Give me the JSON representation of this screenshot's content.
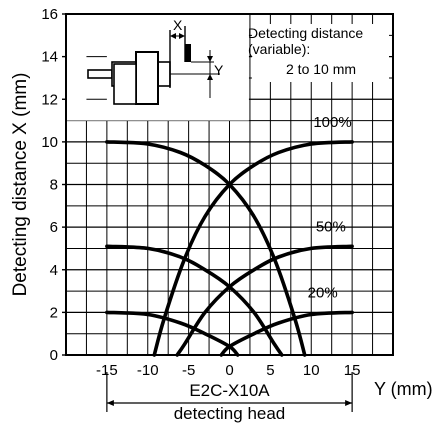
{
  "chart_data": {
    "type": "line",
    "title": "",
    "xlabel": "Y (mm)",
    "ylabel": "Detecting distance X (mm)",
    "xlim": [
      -20,
      20
    ],
    "ylim": [
      0,
      16
    ],
    "x_ticks": [
      -15,
      -10,
      -5,
      0,
      5,
      10,
      15
    ],
    "y_ticks": [
      0,
      2,
      4,
      6,
      8,
      10,
      12,
      14,
      16
    ],
    "grid": true,
    "series": [
      {
        "name": "100%",
        "left": [
          [
            -15,
            10.0
          ],
          [
            -10,
            9.9
          ],
          [
            -6,
            9.5
          ],
          [
            -3,
            8.9
          ],
          [
            0,
            8.0
          ],
          [
            3,
            6.5
          ],
          [
            5.5,
            4.5
          ],
          [
            8,
            1.7
          ],
          [
            9.2,
            0.0
          ]
        ],
        "right": [
          [
            -9.2,
            0.0
          ],
          [
            -8,
            1.7
          ],
          [
            -5.5,
            4.5
          ],
          [
            -3,
            6.5
          ],
          [
            0,
            8.0
          ],
          [
            3,
            8.9
          ],
          [
            6,
            9.5
          ],
          [
            10,
            9.9
          ],
          [
            15,
            10.0
          ]
        ]
      },
      {
        "name": "50%",
        "left": [
          [
            -15,
            5.1
          ],
          [
            -10,
            5.0
          ],
          [
            -6,
            4.6
          ],
          [
            -3,
            4.0
          ],
          [
            0,
            3.2
          ],
          [
            3,
            2.0
          ],
          [
            5.5,
            0.5
          ],
          [
            6.4,
            0.0
          ]
        ],
        "right": [
          [
            -6.4,
            0.0
          ],
          [
            -5.5,
            0.5
          ],
          [
            -3,
            2.0
          ],
          [
            0,
            3.2
          ],
          [
            3,
            4.0
          ],
          [
            6,
            4.6
          ],
          [
            10,
            5.0
          ],
          [
            15,
            5.1
          ]
        ]
      },
      {
        "name": "20%",
        "left": [
          [
            -15,
            2.0
          ],
          [
            -10,
            1.9
          ],
          [
            -6,
            1.5
          ],
          [
            -3,
            1.0
          ],
          [
            0,
            0.4
          ],
          [
            1,
            0.0
          ]
        ],
        "right": [
          [
            -1,
            0.0
          ],
          [
            0,
            0.4
          ],
          [
            3,
            1.0
          ],
          [
            6,
            1.5
          ],
          [
            10,
            1.9
          ],
          [
            15,
            2.0
          ]
        ]
      }
    ],
    "annotations": {
      "distance_label_line1": "Detecting distance",
      "distance_label_line2": "(variable):",
      "distance_label_line3": "2 to 10 mm",
      "head_model": "E2C-X10A",
      "head_caption": "detecting head",
      "dim_x": "X",
      "dim_y": "Y"
    }
  }
}
